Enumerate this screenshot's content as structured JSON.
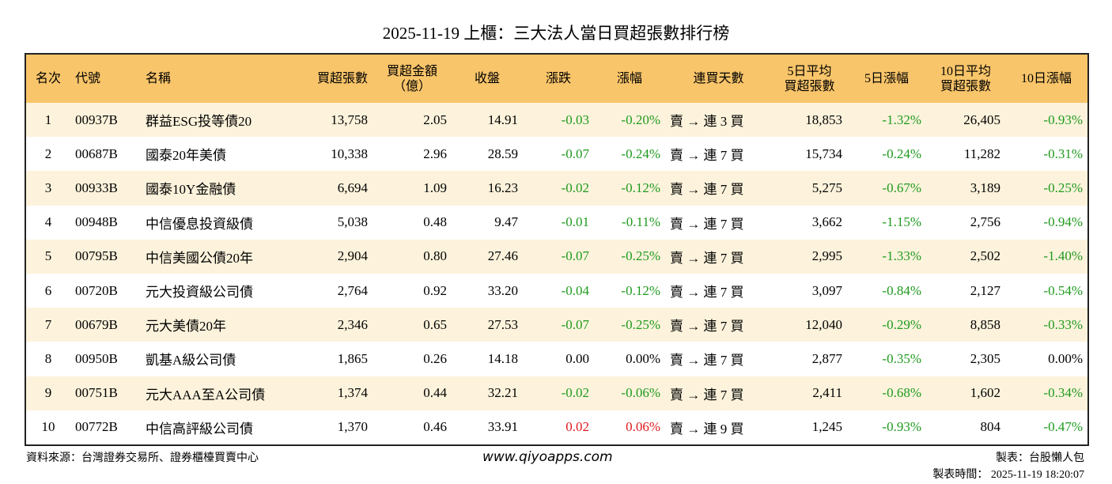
{
  "title": "2025-11-19 上櫃：三大法人當日買超張數排行榜",
  "table": {
    "header": [
      "名次",
      "代號",
      "名稱",
      "買超張數",
      "買超金額\n（億）",
      "收盤",
      "漲跌",
      "漲幅",
      "連買天數",
      "5日平均\n買超張數",
      "5日漲幅",
      "10日平均\n買超張數",
      "10日漲幅"
    ],
    "rows": [
      [
        "1",
        "00937B",
        "群益ESG投等債20",
        "13,758",
        "2.05",
        "14.91",
        "-0.03",
        "-0.20%",
        "賣 → 連 3 買",
        "18,853",
        "-1.32%",
        "26,405",
        "-0.93%"
      ],
      [
        "2",
        "00687B",
        "國泰20年美債",
        "10,338",
        "2.96",
        "28.59",
        "-0.07",
        "-0.24%",
        "賣 → 連 7 買",
        "15,734",
        "-0.24%",
        "11,282",
        "-0.31%"
      ],
      [
        "3",
        "00933B",
        "國泰10Y金融債",
        "6,694",
        "1.09",
        "16.23",
        "-0.02",
        "-0.12%",
        "賣 → 連 7 買",
        "5,275",
        "-0.67%",
        "3,189",
        "-0.25%"
      ],
      [
        "4",
        "00948B",
        "中信優息投資級債",
        "5,038",
        "0.48",
        "9.47",
        "-0.01",
        "-0.11%",
        "賣 → 連 7 買",
        "3,662",
        "-1.15%",
        "2,756",
        "-0.94%"
      ],
      [
        "5",
        "00795B",
        "中信美國公債20年",
        "2,904",
        "0.80",
        "27.46",
        "-0.07",
        "-0.25%",
        "賣 → 連 7 買",
        "2,995",
        "-1.33%",
        "2,502",
        "-1.40%"
      ],
      [
        "6",
        "00720B",
        "元大投資級公司債",
        "2,764",
        "0.92",
        "33.20",
        "-0.04",
        "-0.12%",
        "賣 → 連 7 買",
        "3,097",
        "-0.84%",
        "2,127",
        "-0.54%"
      ],
      [
        "7",
        "00679B",
        "元大美債20年",
        "2,346",
        "0.65",
        "27.53",
        "-0.07",
        "-0.25%",
        "賣 → 連 7 買",
        "12,040",
        "-0.29%",
        "8,858",
        "-0.33%"
      ],
      [
        "8",
        "00950B",
        "凱基A級公司債",
        "1,865",
        "0.26",
        "14.18",
        "0.00",
        "0.00%",
        "賣 → 連 7 買",
        "2,877",
        "-0.35%",
        "2,305",
        "0.00%"
      ],
      [
        "9",
        "00751B",
        "元大AAA至A公司債",
        "1,374",
        "0.44",
        "32.21",
        "-0.02",
        "-0.06%",
        "賣 → 連 7 買",
        "2,411",
        "-0.68%",
        "1,602",
        "-0.34%"
      ],
      [
        "10",
        "00772B",
        "中信高評級公司債",
        "1,370",
        "0.46",
        "33.91",
        "0.02",
        "0.06%",
        "賣 → 連 9 買",
        "1,245",
        "-0.93%",
        "804",
        "-0.47%"
      ]
    ]
  },
  "footer": {
    "source": "資料來源：台灣證券交易所、證券櫃檯買賣中心",
    "website": "www.qiyoapps.com",
    "maker": "製表：台股懶人包",
    "time": "製表時間： 2025-11-19 18:20:07"
  }
}
